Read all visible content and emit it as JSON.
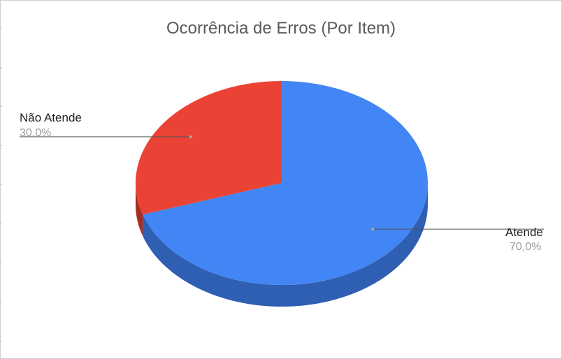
{
  "chart_data": {
    "type": "pie",
    "title": "Ocorrência de Erros (Por Item)",
    "slices": [
      {
        "label": "Atende",
        "value": 70.0,
        "percent_label": "70,0%",
        "color": "#4285f4",
        "side_color": "#2f5fb3"
      },
      {
        "label": "Não Atende",
        "value": 30.0,
        "percent_label": "30,0%",
        "color": "#ea4335",
        "side_color": "#a52e23"
      }
    ],
    "style": "3d",
    "legend": "labels beside slices"
  }
}
